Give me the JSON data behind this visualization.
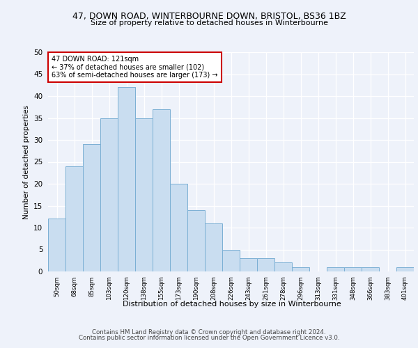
{
  "title_line1": "47, DOWN ROAD, WINTERBOURNE DOWN, BRISTOL, BS36 1BZ",
  "title_line2": "Size of property relative to detached houses in Winterbourne",
  "xlabel": "Distribution of detached houses by size in Winterbourne",
  "ylabel": "Number of detached properties",
  "categories": [
    "50sqm",
    "68sqm",
    "85sqm",
    "103sqm",
    "120sqm",
    "138sqm",
    "155sqm",
    "173sqm",
    "190sqm",
    "208sqm",
    "226sqm",
    "243sqm",
    "261sqm",
    "278sqm",
    "296sqm",
    "313sqm",
    "331sqm",
    "348sqm",
    "366sqm",
    "383sqm",
    "401sqm"
  ],
  "values": [
    12,
    24,
    29,
    35,
    42,
    35,
    37,
    20,
    14,
    11,
    5,
    3,
    3,
    2,
    1,
    0,
    1,
    1,
    1,
    0,
    1
  ],
  "bar_color": "#c9ddf0",
  "bar_edge_color": "#7aafd4",
  "highlight_bar_index": 4,
  "annotation_line1": "47 DOWN ROAD: 121sqm",
  "annotation_line2": "← 37% of detached houses are smaller (102)",
  "annotation_line3": "63% of semi-detached houses are larger (173) →",
  "annotation_box_color": "#ffffff",
  "annotation_box_edge": "#cc0000",
  "ylim": [
    0,
    50
  ],
  "yticks": [
    0,
    5,
    10,
    15,
    20,
    25,
    30,
    35,
    40,
    45,
    50
  ],
  "footer_line1": "Contains HM Land Registry data © Crown copyright and database right 2024.",
  "footer_line2": "Contains public sector information licensed under the Open Government Licence v3.0.",
  "bg_color": "#eef2fa",
  "plot_bg_color": "#eef2fa"
}
